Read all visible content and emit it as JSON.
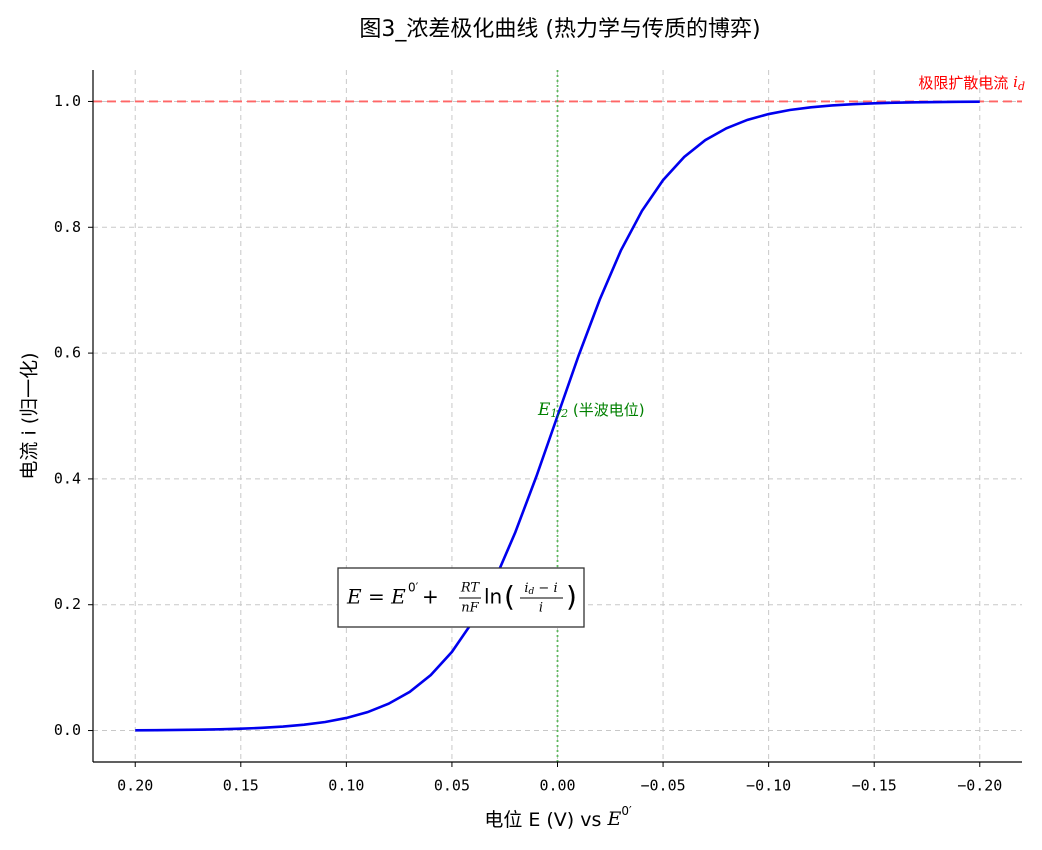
{
  "chart_data": {
    "type": "line",
    "title": "图3_浓差极化曲线 (热力学与传质的博弈)",
    "xlabel": "电位 E (V) vs ",
    "xlabel_math": {
      "base": "E",
      "sup": "0′"
    },
    "ylabel": "电流 i (归一化)",
    "x": [
      0.2,
      0.19,
      0.18,
      0.17,
      0.16,
      0.15,
      0.14,
      0.13,
      0.12,
      0.11,
      0.1,
      0.09,
      0.08,
      0.07,
      0.06,
      0.05,
      0.04,
      0.03,
      0.02,
      0.01,
      0,
      -0.01,
      -0.02,
      -0.03,
      -0.04,
      -0.05,
      -0.06,
      -0.07,
      -0.08,
      -0.09,
      -0.1,
      -0.11,
      -0.12,
      -0.13,
      -0.14,
      -0.15,
      -0.16,
      -0.17,
      -0.18,
      -0.19,
      -0.2
    ],
    "series": [
      {
        "color": "#0000ee",
        "values": [
          0.0004,
          0.0006,
          0.0009,
          0.0013,
          0.002,
          0.0029,
          0.0043,
          0.0063,
          0.0093,
          0.0136,
          0.02,
          0.0292,
          0.0426,
          0.0615,
          0.0883,
          0.125,
          0.174,
          0.237,
          0.315,
          0.404,
          0.5,
          0.596,
          0.685,
          0.763,
          0.826,
          0.875,
          0.9117,
          0.9385,
          0.9574,
          0.9708,
          0.98,
          0.9864,
          0.9907,
          0.9937,
          0.9957,
          0.9971,
          0.998,
          0.9987,
          0.9991,
          0.9994,
          0.9996
        ]
      }
    ],
    "xlim": [
      0.22,
      -0.22
    ],
    "ylim": [
      -0.05,
      1.05
    ],
    "xticks": [
      {
        "value": 0.2,
        "label": "0.20"
      },
      {
        "value": 0.15,
        "label": "0.15"
      },
      {
        "value": 0.1,
        "label": "0.10"
      },
      {
        "value": 0.05,
        "label": "0.05"
      },
      {
        "value": 0,
        "label": "0.00"
      },
      {
        "value": -0.05,
        "label": "−0.05"
      },
      {
        "value": -0.1,
        "label": "−0.10"
      },
      {
        "value": -0.15,
        "label": "−0.15"
      },
      {
        "value": -0.2,
        "label": "−0.20"
      }
    ],
    "yticks": [
      {
        "value": 0,
        "label": "0.0"
      },
      0.2,
      0.4,
      0.6,
      0.8,
      {
        "value": 1,
        "label": "1.0"
      }
    ],
    "grid": true,
    "hline": {
      "y": 1,
      "color": "#ff6666",
      "text": "极限扩散电流 ",
      "math": "i",
      "sub": "d"
    },
    "vline": {
      "x": 0,
      "color": "#5cb85c",
      "math": "E",
      "sub": "1/2",
      "text": " (半波电位)",
      "text_color": "#008000"
    },
    "formula": {
      "lhs": "E = E",
      "sup": "0′",
      "op": " + ",
      "frac1_num": "RT",
      "frac1_den": "nF",
      "fn": "ln",
      "open": "(",
      "frac2_num": "i",
      "frac2_num_sub": "d",
      "frac2_num_rest": " − i",
      "frac2_den": "i",
      "close": ")"
    }
  }
}
